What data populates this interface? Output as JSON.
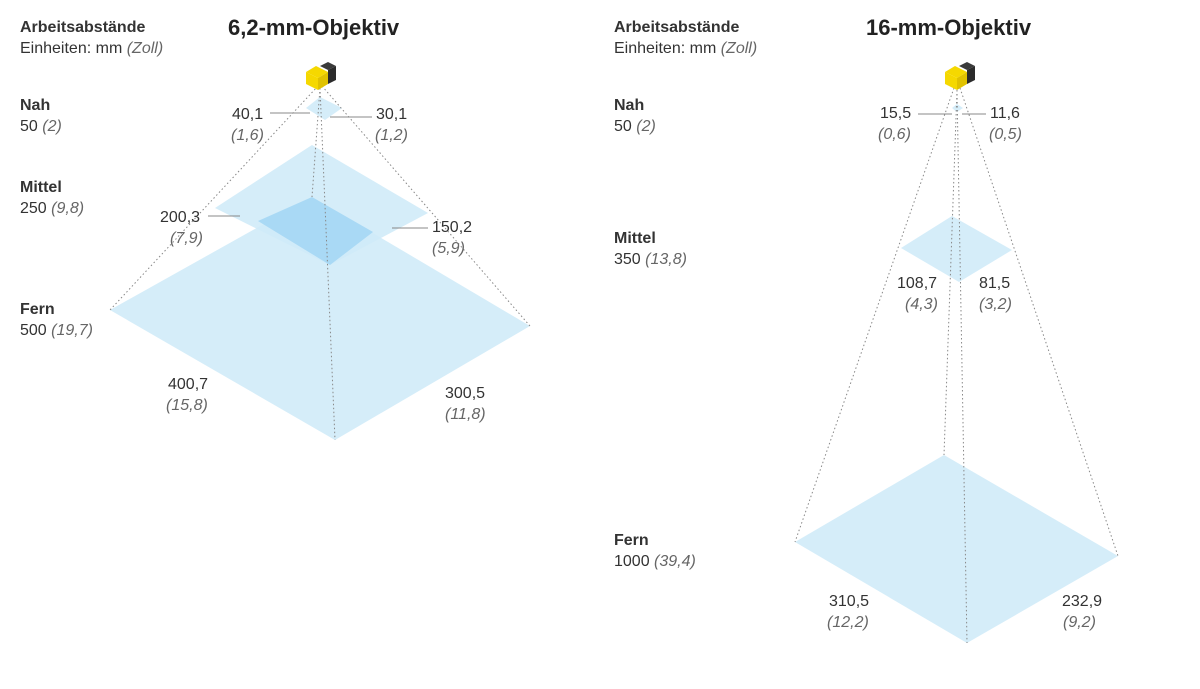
{
  "colors": {
    "plane": "#cfeaf8",
    "overlap": "#a9d9f5",
    "camera_yellow": "#f5d800",
    "camera_dark": "#2b2b2b"
  },
  "left": {
    "title": "6,2-mm-Objektiv",
    "header": "Arbeitsabstände",
    "units": "Einheiten: mm",
    "units_alt": "(Zoll)",
    "distances": [
      {
        "name": "Nah",
        "mm": "50",
        "inch": "(2)"
      },
      {
        "name": "Mittel",
        "mm": "250",
        "inch": "(9,8)"
      },
      {
        "name": "Fern",
        "mm": "500",
        "inch": "(19,7)"
      }
    ],
    "fields": [
      {
        "w_mm": "40,1",
        "w_in": "(1,6)",
        "h_mm": "30,1",
        "h_in": "(1,2)"
      },
      {
        "w_mm": "200,3",
        "w_in": "(7,9)",
        "h_mm": "150,2",
        "h_in": "(5,9)"
      },
      {
        "w_mm": "400,7",
        "w_in": "(15,8)",
        "h_mm": "300,5",
        "h_in": "(11,8)"
      }
    ]
  },
  "right": {
    "title": "16-mm-Objektiv",
    "header": "Arbeitsabstände",
    "units": "Einheiten: mm",
    "units_alt": "(Zoll)",
    "distances": [
      {
        "name": "Nah",
        "mm": "50",
        "inch": "(2)"
      },
      {
        "name": "Mittel",
        "mm": "350",
        "inch": "(13,8)"
      },
      {
        "name": "Fern",
        "mm": "1000",
        "inch": "(39,4)"
      }
    ],
    "fields": [
      {
        "w_mm": "15,5",
        "w_in": "(0,6)",
        "h_mm": "11,6",
        "h_in": "(0,5)"
      },
      {
        "w_mm": "108,7",
        "w_in": "(4,3)",
        "h_mm": "81,5",
        "h_in": "(3,2)"
      },
      {
        "w_mm": "310,5",
        "w_in": "(12,2)",
        "h_mm": "232,9",
        "h_in": "(9,2)"
      }
    ]
  }
}
